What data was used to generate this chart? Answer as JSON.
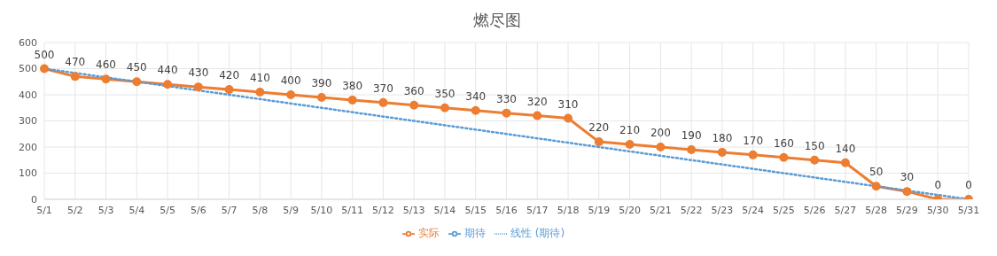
{
  "chart_data": {
    "type": "line",
    "title": "燃尽图",
    "categories": [
      "5/1",
      "5/2",
      "5/3",
      "5/4",
      "5/5",
      "5/6",
      "5/7",
      "5/8",
      "5/9",
      "5/10",
      "5/11",
      "5/12",
      "5/13",
      "5/14",
      "5/15",
      "5/16",
      "5/17",
      "5/18",
      "5/19",
      "5/20",
      "5/21",
      "5/22",
      "5/23",
      "5/24",
      "5/25",
      "5/26",
      "5/27",
      "5/28",
      "5/29",
      "5/30",
      "5/31"
    ],
    "series": [
      {
        "name": "期待",
        "color": "#5b9bd5",
        "marker": "circle",
        "line_style": "solid",
        "values": [
          null,
          null,
          null,
          null,
          null,
          null,
          null,
          null,
          null,
          null,
          null,
          null,
          null,
          null,
          null,
          null,
          null,
          null,
          null,
          null,
          null,
          null,
          null,
          null,
          null,
          null,
          null,
          null,
          null,
          null,
          null
        ]
      },
      {
        "name": "实际",
        "color": "#ed7d31",
        "marker": "circle",
        "line_style": "solid",
        "values": [
          500,
          470,
          460,
          450,
          440,
          430,
          420,
          410,
          400,
          390,
          380,
          370,
          360,
          350,
          340,
          330,
          320,
          310,
          220,
          210,
          200,
          190,
          180,
          170,
          160,
          150,
          140,
          50,
          30,
          0,
          0
        ],
        "value_labels": [
          "500",
          "470",
          "460",
          "450",
          "440",
          "430",
          "420",
          "410",
          "400",
          "390",
          "380",
          "370",
          "360",
          "350",
          "340",
          "330",
          "320",
          "310",
          "220",
          "210",
          "200",
          "190",
          "180",
          "170",
          "160",
          "150",
          "140",
          "50",
          "30",
          "0",
          "0"
        ]
      },
      {
        "name": "线性 (期待)",
        "color": "#5b9bd5",
        "marker": "none",
        "line_style": "dotted",
        "values": [
          500,
          null,
          null,
          null,
          null,
          null,
          null,
          null,
          null,
          null,
          null,
          null,
          null,
          null,
          null,
          null,
          null,
          null,
          null,
          null,
          null,
          null,
          null,
          null,
          null,
          null,
          null,
          null,
          null,
          null,
          0
        ]
      }
    ],
    "ylim": [
      0,
      600
    ],
    "yticks": [
      0,
      100,
      200,
      300,
      400,
      500,
      600
    ],
    "grid": true,
    "legend": "bottom"
  }
}
